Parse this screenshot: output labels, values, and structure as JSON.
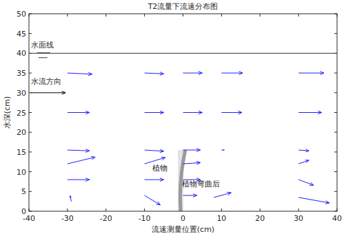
{
  "chart_data": {
    "type": "quiver",
    "title": "T2流量下流速分布图",
    "x_label": "流速测量位置(cm)",
    "y_label": "水深(cm)",
    "xlim": [
      -40,
      40
    ],
    "xticks": [
      -40,
      -30,
      -20,
      -10,
      0,
      10,
      20,
      30,
      40
    ],
    "ylim": [
      0,
      50
    ],
    "yticks": [
      0,
      5,
      10,
      15,
      20,
      25,
      30,
      35,
      40,
      45,
      50
    ],
    "color": "#1f1fff",
    "x": [
      -30,
      -30,
      -30,
      -30,
      -30,
      -29,
      -10,
      -10,
      -10,
      -10,
      -10,
      -10,
      0,
      0,
      0,
      0,
      0,
      0,
      10,
      10,
      10,
      8,
      30,
      30,
      30,
      30,
      30,
      30
    ],
    "y": [
      35,
      25,
      15.5,
      12,
      8,
      2.5,
      35,
      25,
      15.5,
      12,
      8,
      4,
      35,
      25,
      15.5,
      12,
      8,
      4,
      35,
      25,
      15.5,
      3.5,
      35,
      25,
      15.5,
      12,
      8,
      3.5
    ],
    "u": [
      6.4,
      5.7,
      5.7,
      7.2,
      5.7,
      -0.3,
      5,
      5,
      5,
      5.4,
      5,
      4.1,
      5,
      5,
      4.5,
      4.5,
      4.5,
      3.6,
      5.5,
      5.3,
      0.7,
      4.5,
      6.6,
      6,
      2.7,
      2.7,
      3.9,
      8
    ],
    "v": [
      -0.3,
      0,
      -0.2,
      1.7,
      0,
      1.4,
      -0.2,
      0,
      -0.3,
      1.6,
      0,
      -2.4,
      0,
      0,
      0,
      0.3,
      0,
      0,
      0,
      0,
      0,
      1.2,
      0,
      0,
      -0.2,
      0.9,
      -1.4,
      -1.4
    ],
    "water_level": 40,
    "flow_arrow": {
      "x": [
        -39.5,
        -30.5
      ],
      "y": 30
    },
    "plant": {
      "x": -0.6,
      "height": 15.5,
      "bent_top_x": 0.6
    },
    "annotations": [
      {
        "text": "水面线",
        "x": -39.5,
        "y": 41.5
      },
      {
        "text": "水流方向",
        "x": -39.5,
        "y": 32.3
      },
      {
        "text": "植物",
        "x": -8,
        "y": 10.3
      },
      {
        "text": "植物弯曲后",
        "x": -0.3,
        "y": 6.3
      }
    ]
  }
}
